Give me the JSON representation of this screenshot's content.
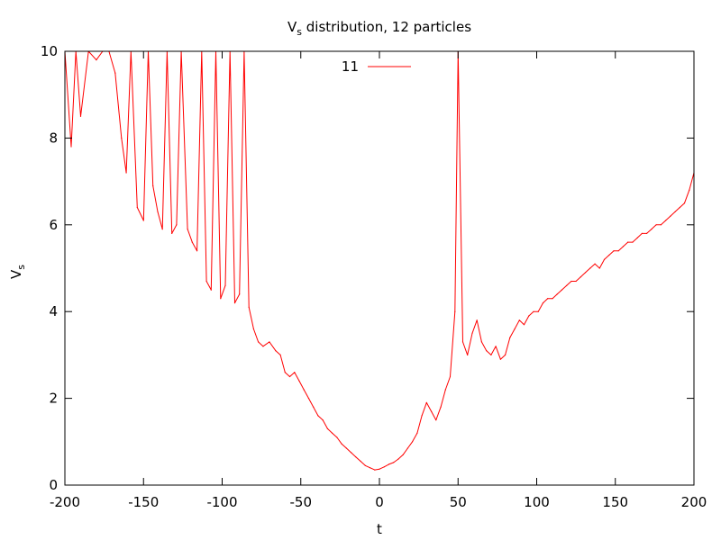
{
  "chart_data": {
    "type": "line",
    "title": "Vs distribution, 12 particles",
    "title_main": "V",
    "title_sub": "s",
    "title_rest": " distribution, 12 particles",
    "xlabel": "t",
    "ylabel": "Vs",
    "ylabel_main": "V",
    "ylabel_sub": "s",
    "xlim": [
      -200,
      200
    ],
    "ylim": [
      0,
      10
    ],
    "xticks": [
      -200,
      -150,
      -100,
      -50,
      0,
      50,
      100,
      150,
      200
    ],
    "yticks": [
      0,
      2,
      4,
      6,
      8,
      10
    ],
    "xtick_labels": [
      "-200",
      "-150",
      "-100",
      "-50",
      "0",
      "50",
      "100",
      "150",
      "200"
    ],
    "ytick_labels": [
      "0",
      "2",
      "4",
      "6",
      "8",
      "10"
    ],
    "grid": false,
    "legend_position": "top-center",
    "series": [
      {
        "name": "11",
        "color": "#ff0000",
        "x": [
          -200,
          -196,
          -193,
          -190,
          -185,
          -180,
          -176,
          -172,
          -168,
          -164,
          -161,
          -158,
          -154,
          -150,
          -147,
          -144,
          -141,
          -138,
          -135,
          -132,
          -129,
          -126,
          -122,
          -119,
          -116,
          -113,
          -110,
          -107,
          -104,
          -101,
          -98,
          -95,
          -92,
          -89,
          -86,
          -83,
          -80,
          -77,
          -74,
          -70,
          -66,
          -63,
          -60,
          -57,
          -54,
          -51,
          -48,
          -45,
          -42,
          -39,
          -36,
          -33,
          -30,
          -27,
          -24,
          -21,
          -18,
          -15,
          -12,
          -9,
          -6,
          -3,
          0,
          3,
          6,
          9,
          12,
          15,
          18,
          21,
          24,
          27,
          30,
          33,
          36,
          39,
          42,
          45,
          48,
          50,
          53,
          56,
          59,
          62,
          65,
          68,
          71,
          74,
          77,
          80,
          83,
          86,
          89,
          92,
          95,
          98,
          101,
          104,
          107,
          110,
          113,
          116,
          119,
          122,
          125,
          128,
          131,
          134,
          137,
          140,
          143,
          146,
          149,
          152,
          155,
          158,
          161,
          164,
          167,
          170,
          173,
          176,
          179,
          182,
          185,
          188,
          191,
          194,
          197,
          200
        ],
        "y": [
          10,
          7.8,
          10,
          8.5,
          10,
          9.8,
          10,
          10,
          9.5,
          8.0,
          7.2,
          10,
          6.4,
          6.1,
          10,
          6.9,
          6.3,
          5.9,
          10,
          5.8,
          6.0,
          10,
          5.9,
          5.6,
          5.4,
          10,
          4.7,
          4.5,
          10,
          4.3,
          4.6,
          10,
          4.2,
          4.4,
          10,
          4.1,
          3.6,
          3.3,
          3.2,
          3.3,
          3.1,
          3.0,
          2.6,
          2.5,
          2.6,
          2.4,
          2.2,
          2.0,
          1.8,
          1.6,
          1.5,
          1.3,
          1.2,
          1.1,
          0.95,
          0.85,
          0.75,
          0.65,
          0.55,
          0.45,
          0.4,
          0.35,
          0.37,
          0.42,
          0.48,
          0.52,
          0.6,
          0.7,
          0.85,
          1.0,
          1.2,
          1.6,
          1.9,
          1.7,
          1.5,
          1.8,
          2.2,
          2.5,
          4.0,
          10,
          3.3,
          3.0,
          3.5,
          3.8,
          3.3,
          3.1,
          3.0,
          3.2,
          2.9,
          3.0,
          3.4,
          3.6,
          3.8,
          3.7,
          3.9,
          4.0,
          4.0,
          4.2,
          4.3,
          4.3,
          4.4,
          4.5,
          4.6,
          4.7,
          4.7,
          4.8,
          4.9,
          5.0,
          5.1,
          5.0,
          5.2,
          5.3,
          5.4,
          5.4,
          5.5,
          5.6,
          5.6,
          5.7,
          5.8,
          5.8,
          5.9,
          6.0,
          6.0,
          6.1,
          6.2,
          6.3,
          6.4,
          6.5,
          6.8,
          7.2
        ]
      }
    ]
  }
}
